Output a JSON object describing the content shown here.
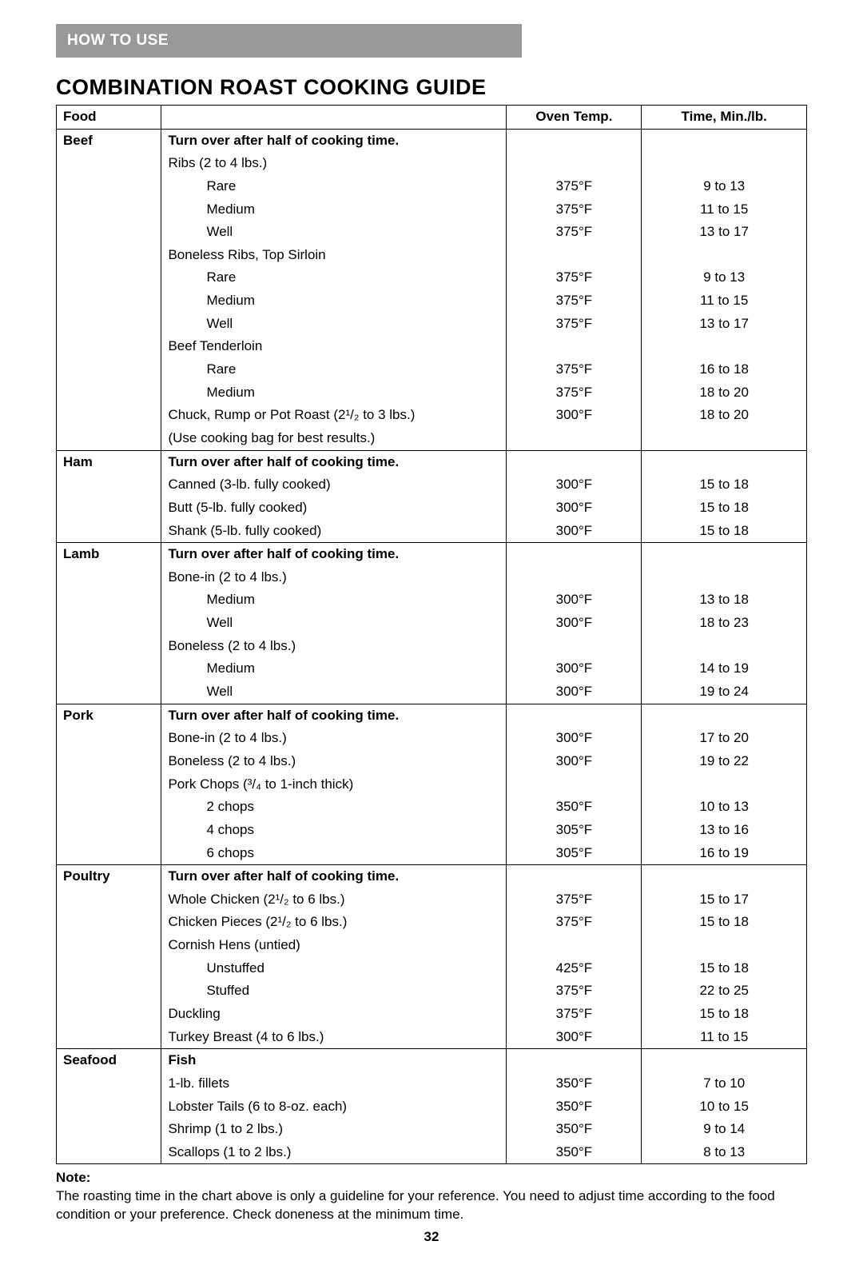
{
  "header_bar": "HOW TO USE",
  "title": "COMBINATION ROAST COOKING GUIDE",
  "columns": {
    "food": "Food",
    "item": "",
    "temp": "Oven Temp.",
    "time": "Time, Min./lb."
  },
  "turn_text": "Turn over after half of cooking time.",
  "sections": {
    "beef": {
      "label": "Beef",
      "rows": [
        {
          "type": "subhead",
          "text": "Ribs (2 to 4 lbs.)"
        },
        {
          "type": "data",
          "text": "Rare",
          "indent": true,
          "temp": "375°F",
          "time": "9 to 13"
        },
        {
          "type": "data",
          "text": "Medium",
          "indent": true,
          "temp": "375°F",
          "time": "11 to 15"
        },
        {
          "type": "data",
          "text": "Well",
          "indent": true,
          "temp": "375°F",
          "time": "13 to 17"
        },
        {
          "type": "subhead",
          "text": "Boneless Ribs, Top Sirloin"
        },
        {
          "type": "data",
          "text": "Rare",
          "indent": true,
          "temp": "375°F",
          "time": "9 to 13"
        },
        {
          "type": "data",
          "text": "Medium",
          "indent": true,
          "temp": "375°F",
          "time": "11 to 15"
        },
        {
          "type": "data",
          "text": "Well",
          "indent": true,
          "temp": "375°F",
          "time": "13 to 17"
        },
        {
          "type": "subhead",
          "text": "Beef Tenderloin"
        },
        {
          "type": "data",
          "text": "Rare",
          "indent": true,
          "temp": "375°F",
          "time": "16 to 18"
        },
        {
          "type": "data",
          "text": "Medium",
          "indent": true,
          "temp": "375°F",
          "time": "18 to 20"
        },
        {
          "type": "data",
          "text": "Chuck, Rump or Pot Roast (2¹/₂  to 3 lbs.)",
          "temp": "300°F",
          "time": "18 to 20"
        },
        {
          "type": "subhead",
          "text": "(Use cooking bag for best results.)"
        }
      ]
    },
    "ham": {
      "label": "Ham",
      "rows": [
        {
          "type": "data",
          "text": "Canned (3-lb. fully cooked)",
          "temp": "300°F",
          "time": "15 to 18"
        },
        {
          "type": "data",
          "text": "Butt (5-lb. fully cooked)",
          "temp": "300°F",
          "time": "15 to 18"
        },
        {
          "type": "data",
          "text": "Shank (5-lb. fully cooked)",
          "temp": "300°F",
          "time": "15 to 18"
        }
      ]
    },
    "lamb": {
      "label": "Lamb",
      "rows": [
        {
          "type": "subhead",
          "text": "Bone-in (2 to 4 lbs.)"
        },
        {
          "type": "data",
          "text": "Medium",
          "indent": true,
          "temp": "300°F",
          "time": "13 to 18"
        },
        {
          "type": "data",
          "text": "Well",
          "indent": true,
          "temp": "300°F",
          "time": "18 to 23"
        },
        {
          "type": "subhead",
          "text": "Boneless (2 to 4 lbs.)"
        },
        {
          "type": "data",
          "text": "Medium",
          "indent": true,
          "temp": "300°F",
          "time": "14 to 19"
        },
        {
          "type": "data",
          "text": "Well",
          "indent": true,
          "temp": "300°F",
          "time": "19 to 24"
        }
      ]
    },
    "pork": {
      "label": "Pork",
      "rows": [
        {
          "type": "data",
          "text": "Bone-in (2 to 4 lbs.)",
          "temp": "300°F",
          "time": "17 to 20"
        },
        {
          "type": "data",
          "text": "Boneless (2 to 4 lbs.)",
          "temp": "300°F",
          "time": "19 to 22"
        },
        {
          "type": "subhead",
          "text": "Pork Chops (³/₄ to 1-inch thick)"
        },
        {
          "type": "data",
          "text": "2 chops",
          "indent": true,
          "temp": "350°F",
          "time": "10 to 13"
        },
        {
          "type": "data",
          "text": "4 chops",
          "indent": true,
          "temp": "305°F",
          "time": "13 to 16"
        },
        {
          "type": "data",
          "text": "6 chops",
          "indent": true,
          "temp": "305°F",
          "time": "16 to 19"
        }
      ]
    },
    "poultry": {
      "label": "Poultry",
      "rows": [
        {
          "type": "data",
          "text": "Whole Chicken (2¹/₂ to 6 lbs.)",
          "temp": "375°F",
          "time": "15 to 17"
        },
        {
          "type": "data",
          "text": "Chicken Pieces (2¹/₂ to 6 lbs.)",
          "temp": "375°F",
          "time": "15 to 18"
        },
        {
          "type": "subhead",
          "text": "Cornish Hens (untied)"
        },
        {
          "type": "data",
          "text": "Unstuffed",
          "indent": true,
          "temp": "425°F",
          "time": "15 to 18"
        },
        {
          "type": "data",
          "text": "Stuffed",
          "indent": true,
          "temp": "375°F",
          "time": "22 to 25"
        },
        {
          "type": "data",
          "text": "Duckling",
          "temp": "375°F",
          "time": "15 to 18"
        },
        {
          "type": "data",
          "text": "Turkey Breast (4 to 6 lbs.)",
          "temp": "300°F",
          "time": "11 to 15"
        }
      ]
    },
    "seafood": {
      "label": "Seafood",
      "head_label": "Fish",
      "rows": [
        {
          "type": "data",
          "text": "1-lb. fillets",
          "temp": "350°F",
          "time": "7 to 10"
        },
        {
          "type": "data",
          "text": "Lobster Tails (6 to 8-oz. each)",
          "temp": "350°F",
          "time": "10 to 15"
        },
        {
          "type": "data",
          "text": "Shrimp (1 to 2 lbs.)",
          "temp": "350°F",
          "time": "9 to 14"
        },
        {
          "type": "data",
          "text": "Scallops (1 to 2 lbs.)",
          "temp": "350°F",
          "time": "8 to 13"
        }
      ]
    }
  },
  "note": {
    "label": "Note:",
    "text": "The roasting time in the chart above is only a guideline for your reference. You need to adjust time according to the food condition or your preference. Check doneness at the minimum time."
  },
  "page_number": "32"
}
